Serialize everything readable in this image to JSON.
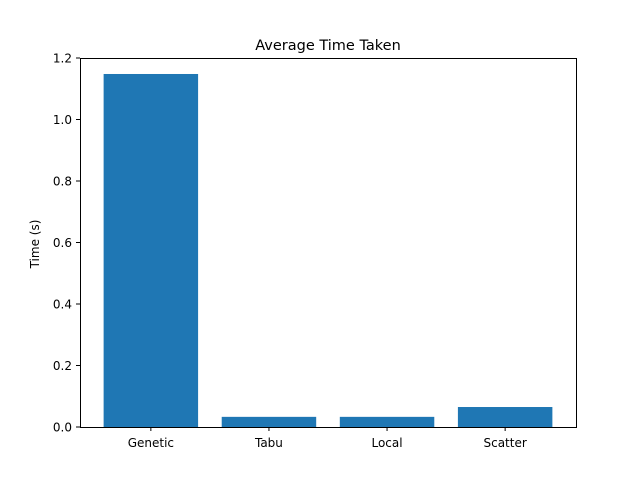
{
  "chart_data": {
    "type": "bar",
    "title": "Average Time Taken",
    "xlabel": "",
    "ylabel": "Time (s)",
    "categories": [
      "Genetic",
      "Tabu",
      "Local",
      "Scatter"
    ],
    "values": [
      1.148,
      0.033,
      0.033,
      0.065
    ],
    "ylim": [
      0,
      1.2
    ],
    "yticks": [
      0.0,
      0.2,
      0.4,
      0.6,
      0.8,
      1.0,
      1.2
    ],
    "ytick_labels": [
      "0.0",
      "0.2",
      "0.4",
      "0.6",
      "0.8",
      "1.0",
      "1.2"
    ],
    "grid": false,
    "legend": "none",
    "bar_color": "#1f77b4"
  }
}
